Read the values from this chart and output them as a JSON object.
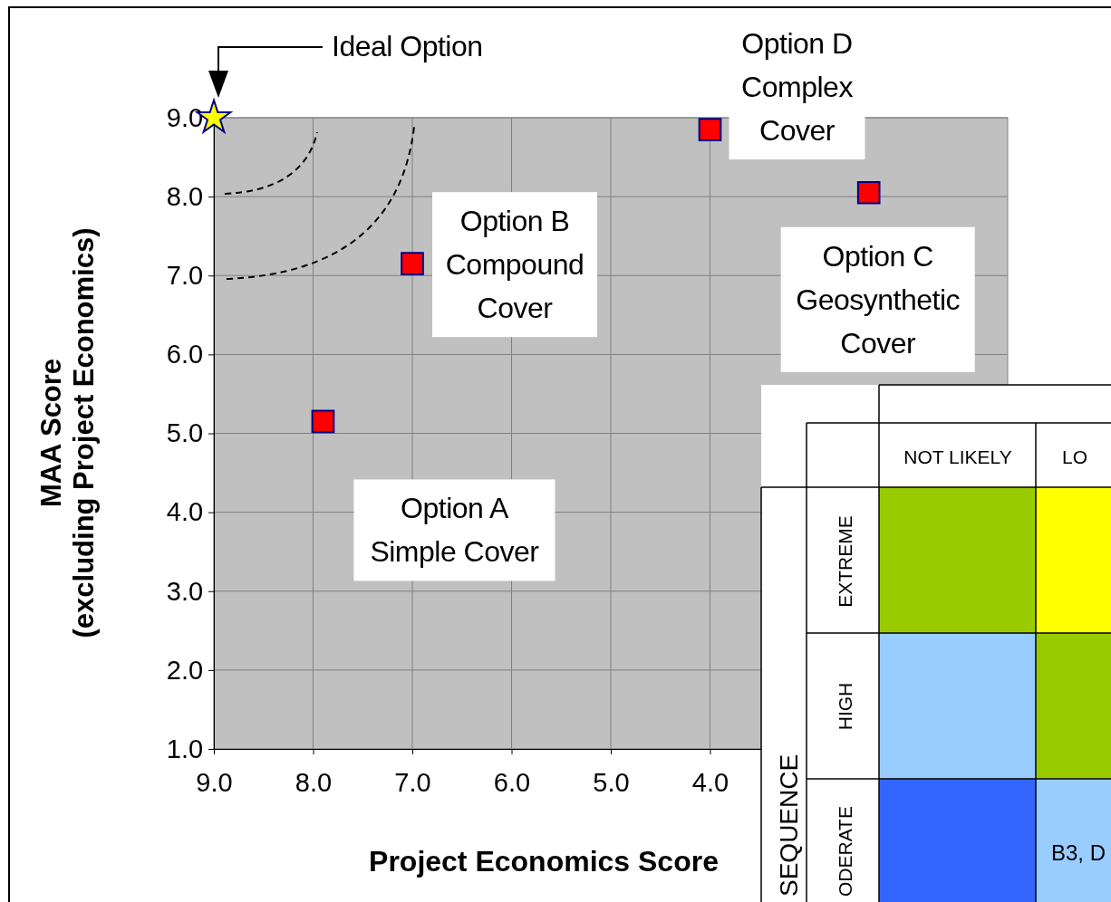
{
  "chart_data": [
    {
      "type": "scatter",
      "xlabel": "Project Economics Score",
      "ylabel": "MAA Score\n(excluding Project Economics)",
      "xlim": [
        9,
        1
      ],
      "ylim": [
        1,
        9
      ],
      "xticks": [
        {
          "value": 9,
          "label": "9.0"
        },
        {
          "value": 8,
          "label": "8.0"
        },
        {
          "value": 7,
          "label": "7.0"
        },
        {
          "value": 6,
          "label": "6.0"
        },
        {
          "value": 5,
          "label": "5.0"
        },
        {
          "value": 4,
          "label": "4.0"
        }
      ],
      "yticks": [
        {
          "value": 1,
          "label": "1.0"
        },
        {
          "value": 2,
          "label": "2.0"
        },
        {
          "value": 3,
          "label": "3.0"
        },
        {
          "value": 4,
          "label": "4.0"
        },
        {
          "value": 5,
          "label": "5.0"
        },
        {
          "value": 6,
          "label": "6.0"
        },
        {
          "value": 7,
          "label": "7.0"
        },
        {
          "value": 8,
          "label": "8.0"
        },
        {
          "value": 9,
          "label": "9.0"
        }
      ],
      "grid": true,
      "series": [
        {
          "color": "#ff0000",
          "marker": "square",
          "x": [
            7.9,
            7.0,
            4.0,
            2.4
          ],
          "values": [
            5.15,
            7.15,
            8.85,
            8.05
          ]
        },
        {
          "color": "#ffff00",
          "marker": "star",
          "x": [
            9.0
          ],
          "values": [
            9.0
          ]
        }
      ],
      "annotations": [
        "Ideal Option",
        {
          "text": "Option A\nSimple Cover",
          "x": 7.9,
          "y": 5.15
        },
        {
          "text": "Option B\nCompound\nCover",
          "x": 7.0,
          "y": 7.15
        },
        {
          "text": "Option D\nComplex\nCover",
          "x": 4.0,
          "y": 8.85
        },
        {
          "text": "Option C\nGeosynthetic\nCover",
          "x": 2.4,
          "y": 8.05
        }
      ]
    },
    {
      "type": "other",
      "annotations": [
        "NOT LIKELY",
        "LO",
        "SEQUENCE",
        "EXTREME",
        "HIGH",
        "ODERATE",
        "B3, D"
      ]
    }
  ]
}
